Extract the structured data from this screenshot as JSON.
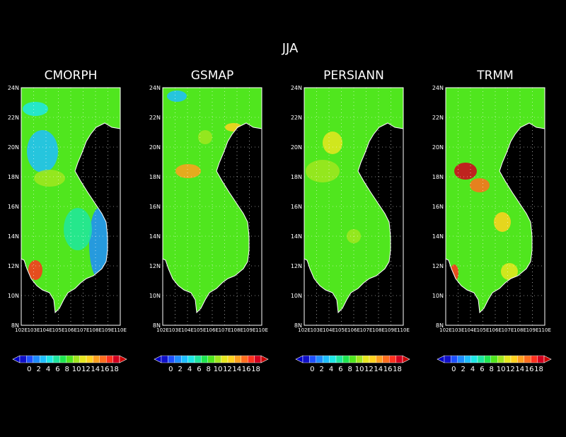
{
  "title": "JJA",
  "lat_ticks": [
    "24N",
    "22N",
    "20N",
    "18N",
    "16N",
    "14N",
    "12N",
    "10N",
    "8N"
  ],
  "lon_ticks": [
    "102E",
    "103E",
    "104E",
    "105E",
    "106E",
    "107E",
    "108E",
    "109E",
    "110E"
  ],
  "colorbar": {
    "labels": [
      "0",
      "2",
      "4",
      "6",
      "8",
      "10",
      "12",
      "14",
      "16",
      "18"
    ],
    "colors": [
      "#1010c8",
      "#1e50ff",
      "#1e8cff",
      "#1ebeff",
      "#1ee6e6",
      "#1ee6a0",
      "#1ee650",
      "#50e61e",
      "#a0e61e",
      "#e6e61e",
      "#ffd21e",
      "#ffa01e",
      "#ff6e1e",
      "#ff321e",
      "#d2001e"
    ]
  },
  "panels": [
    {
      "name": "CMORPH"
    },
    {
      "name": "GSMAP"
    },
    {
      "name": "PERSIANN"
    },
    {
      "name": "TRMM"
    }
  ]
}
